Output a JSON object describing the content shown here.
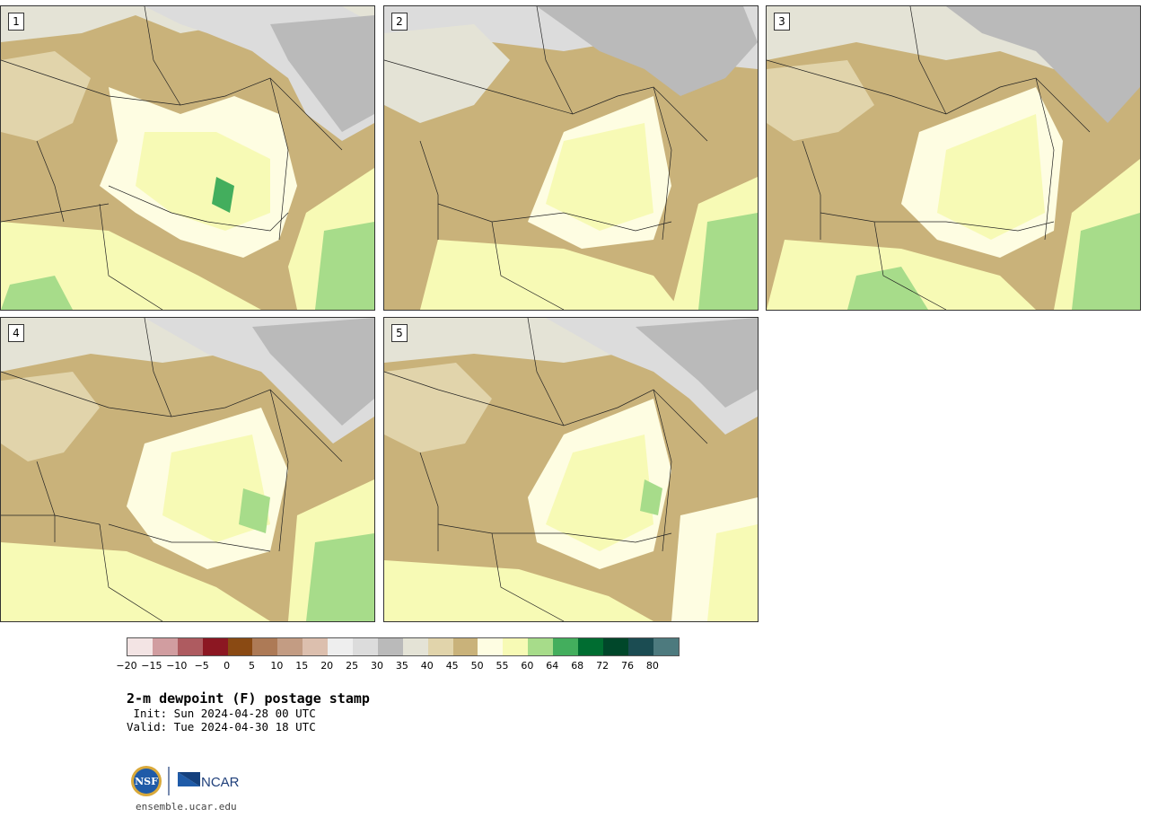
{
  "panels": [
    {
      "label": "1"
    },
    {
      "label": "2"
    },
    {
      "label": "3"
    },
    {
      "label": "4"
    },
    {
      "label": "5"
    }
  ],
  "colorbar": {
    "colors": [
      "#f3e4e4",
      "#d19da0",
      "#ae5b60",
      "#8c1722",
      "#8a4a13",
      "#ad7a56",
      "#c39c83",
      "#dcbfae",
      "#eeeeee",
      "#dcdcdc",
      "#bababa",
      "#e4e3d6",
      "#e1d4ab",
      "#c9b27a",
      "#fefde2",
      "#f7fab5",
      "#a7dc8a",
      "#43ae5d",
      "#006d31",
      "#00472a",
      "#1b4c52",
      "#4d7a7e"
    ],
    "tick_labels": [
      "−20",
      "−15",
      "−10",
      "−5",
      "0",
      "5",
      "10",
      "15",
      "20",
      "25",
      "30",
      "35",
      "40",
      "45",
      "50",
      "55",
      "60",
      "64",
      "68",
      "72",
      "76",
      "80"
    ]
  },
  "title": "2-m dewpoint (F) postage stamp",
  "init": " Init: Sun 2024-04-28 00 UTC",
  "valid": "Valid: Tue 2024-04-30 18 UTC",
  "logos": {
    "nsf": "NSF",
    "ncar": "NCAR"
  },
  "footer": "ensemble.ucar.edu"
}
